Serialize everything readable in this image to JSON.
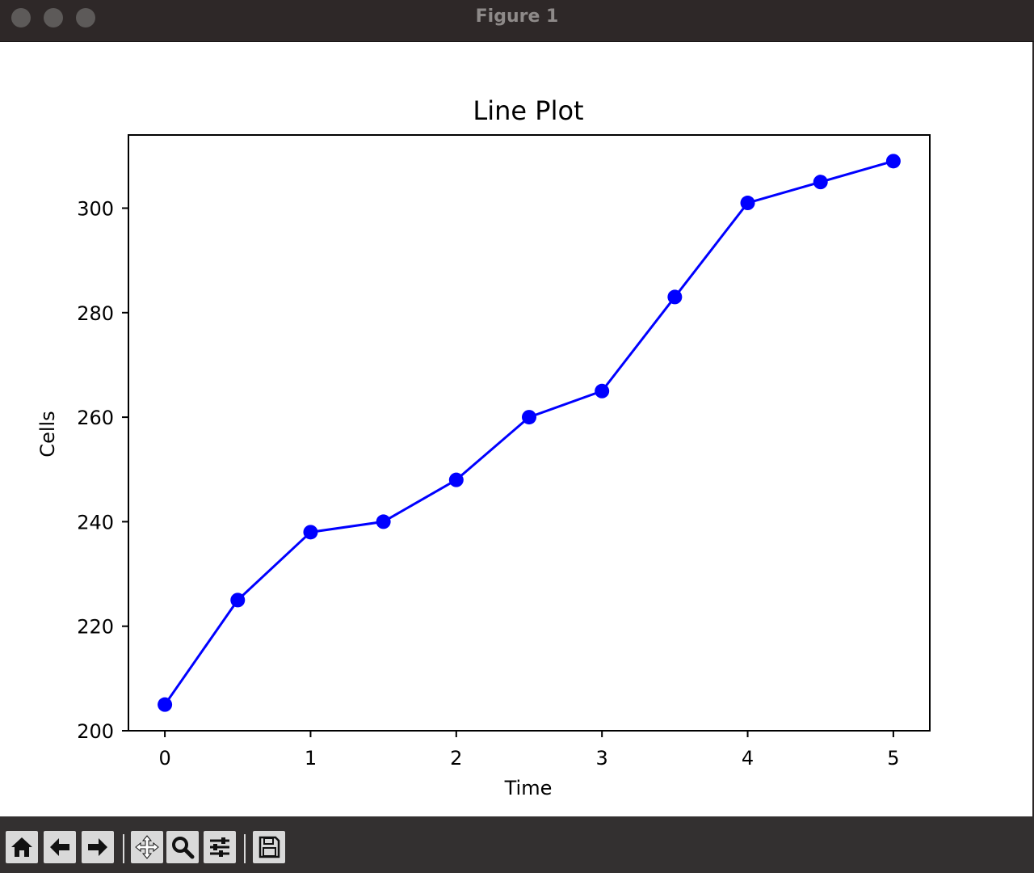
{
  "window": {
    "title": "Figure 1"
  },
  "chart_data": {
    "type": "line",
    "title": "Line Plot",
    "xlabel": "Time",
    "ylabel": "Cells",
    "x": [
      0,
      0.5,
      1,
      1.5,
      2,
      2.5,
      3,
      3.5,
      4,
      4.5,
      5
    ],
    "series": [
      {
        "values": [
          205,
          225,
          238,
          240,
          248,
          260,
          265,
          283,
          301,
          305,
          309
        ],
        "color": "#0000ff",
        "marker": "circle"
      }
    ],
    "xticks": [
      "0",
      "1",
      "2",
      "3",
      "4",
      "5"
    ],
    "yticks": [
      "200",
      "220",
      "240",
      "260",
      "280",
      "300"
    ],
    "xlim": [
      -0.25,
      5.25
    ],
    "ylim": [
      200,
      314
    ],
    "grid": false
  },
  "toolbar": {
    "buttons": [
      "home-icon",
      "back-arrow-icon",
      "forward-arrow-icon",
      "pan-icon",
      "zoom-icon",
      "configure-subplots-icon",
      "save-icon"
    ]
  }
}
